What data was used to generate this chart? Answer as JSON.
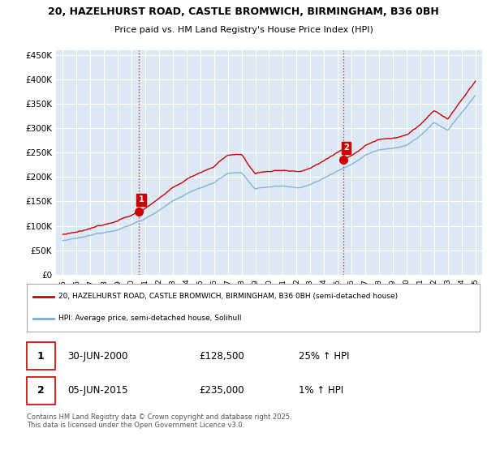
{
  "title_line1": "20, HAZELHURST ROAD, CASTLE BROMWICH, BIRMINGHAM, B36 0BH",
  "title_line2": "Price paid vs. HM Land Registry's House Price Index (HPI)",
  "ylabel_ticks": [
    "£0",
    "£50K",
    "£100K",
    "£150K",
    "£200K",
    "£250K",
    "£300K",
    "£350K",
    "£400K",
    "£450K"
  ],
  "ytick_values": [
    0,
    50000,
    100000,
    150000,
    200000,
    250000,
    300000,
    350000,
    400000,
    450000
  ],
  "ylim": [
    0,
    460000
  ],
  "xlim_start": 1994.5,
  "xlim_end": 2025.5,
  "background_color": "#ffffff",
  "plot_bg_color": "#dce9f5",
  "grid_color": "#ffffff",
  "red_line_color": "#cc0000",
  "blue_line_color": "#7aadd4",
  "vline_color": "#cc0000",
  "sale1_x": 2000.5,
  "sale1_y": 128500,
  "sale2_x": 2015.42,
  "sale2_y": 235000,
  "legend_line1": "20, HAZELHURST ROAD, CASTLE BROMWICH, BIRMINGHAM, B36 0BH (semi-detached house)",
  "legend_line2": "HPI: Average price, semi-detached house, Solihull",
  "annotation1_date": "30-JUN-2000",
  "annotation1_price": "£128,500",
  "annotation1_hpi": "25% ↑ HPI",
  "annotation2_date": "05-JUN-2015",
  "annotation2_price": "£235,000",
  "annotation2_hpi": "1% ↑ HPI",
  "footer": "Contains HM Land Registry data © Crown copyright and database right 2025.\nThis data is licensed under the Open Government Licence v3.0."
}
